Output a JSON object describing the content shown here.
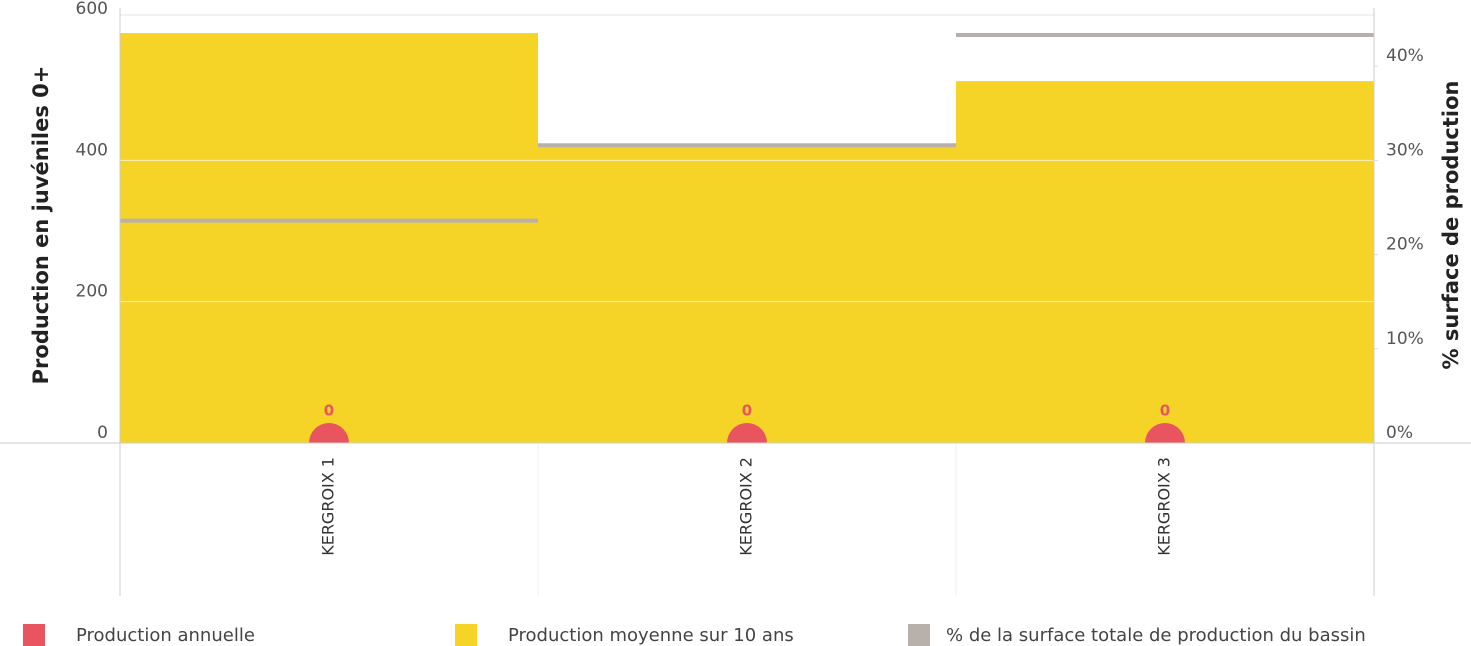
{
  "chart_data": {
    "type": "bar",
    "categories": [
      "KERGROIX 1",
      "KERGROIX 2",
      "KERGROIX 3"
    ],
    "ylabel": "Production en juvéniles 0+",
    "y2label": "% surface de production",
    "ylim": [
      0,
      600
    ],
    "yticks": [
      0,
      200,
      400,
      600
    ],
    "y2lim": [
      0,
      45
    ],
    "y2ticks": [
      {
        "value": 0,
        "label": "0%"
      },
      {
        "value": 10,
        "label": "10%"
      },
      {
        "value": 20,
        "label": "20%"
      },
      {
        "value": 30,
        "label": "30%"
      },
      {
        "value": 40,
        "label": "40%"
      }
    ],
    "grid": true,
    "series": [
      {
        "name": "Production annuelle",
        "color": "#e8555e",
        "values": [
          0,
          0,
          0
        ]
      },
      {
        "name": "Production moyenne sur 10 ans",
        "color": "#f5d327",
        "values": [
          580,
          420,
          512
        ]
      },
      {
        "name": "% de la surface totale de production du bassin",
        "color": "#b8b0ab",
        "values": [
          23.6,
          31.6,
          43.3
        ],
        "axis": "y2"
      }
    ]
  }
}
